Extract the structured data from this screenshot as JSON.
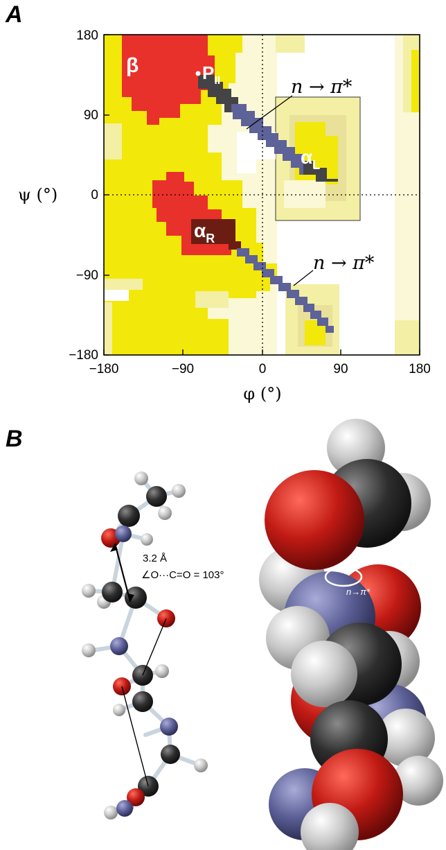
{
  "figure": {
    "panel_a_letter": "A",
    "panel_b_letter": "B"
  },
  "chart_data": {
    "type": "heatmap",
    "xlabel": "φ (°)",
    "ylabel": "ψ (°)",
    "xlim": [
      -180,
      180
    ],
    "ylim": [
      -180,
      180
    ],
    "xticks": [
      "−180",
      "−90",
      "0",
      "90",
      "180"
    ],
    "yticks": [
      "−180",
      "−90",
      "0",
      "90",
      "180"
    ],
    "grid": false,
    "dotted_reference_lines": [
      "φ = 0",
      "ψ = 0"
    ],
    "region_labels": [
      {
        "text": "β",
        "phi": -150,
        "psi": 145
      },
      {
        "text": "P",
        "sub": "II",
        "phi": -75,
        "psi": 145
      },
      {
        "text": "α",
        "sub": "L",
        "phi": 57,
        "psi": 40
      },
      {
        "text": "α",
        "sub": "R",
        "phi": -80,
        "psi": -45
      }
    ],
    "annotations": [
      {
        "text": "n → π*",
        "points_to_phi": -20,
        "psi": 83
      },
      {
        "text": "n → π*",
        "points_to_phi": 40,
        "psi": -105
      }
    ],
    "colors": {
      "most_favored": "#e8312b",
      "favored": "#f2e80a",
      "allowed": "#f3efa4",
      "generous": "#faf8d6",
      "n_to_pi_band": "#5d6299",
      "band_on_red": "#6b1d14"
    }
  },
  "panel_b": {
    "distance": "3.2 Å",
    "angle": "∠O···C=O = 103°",
    "space_fill_label": "n→π*"
  }
}
